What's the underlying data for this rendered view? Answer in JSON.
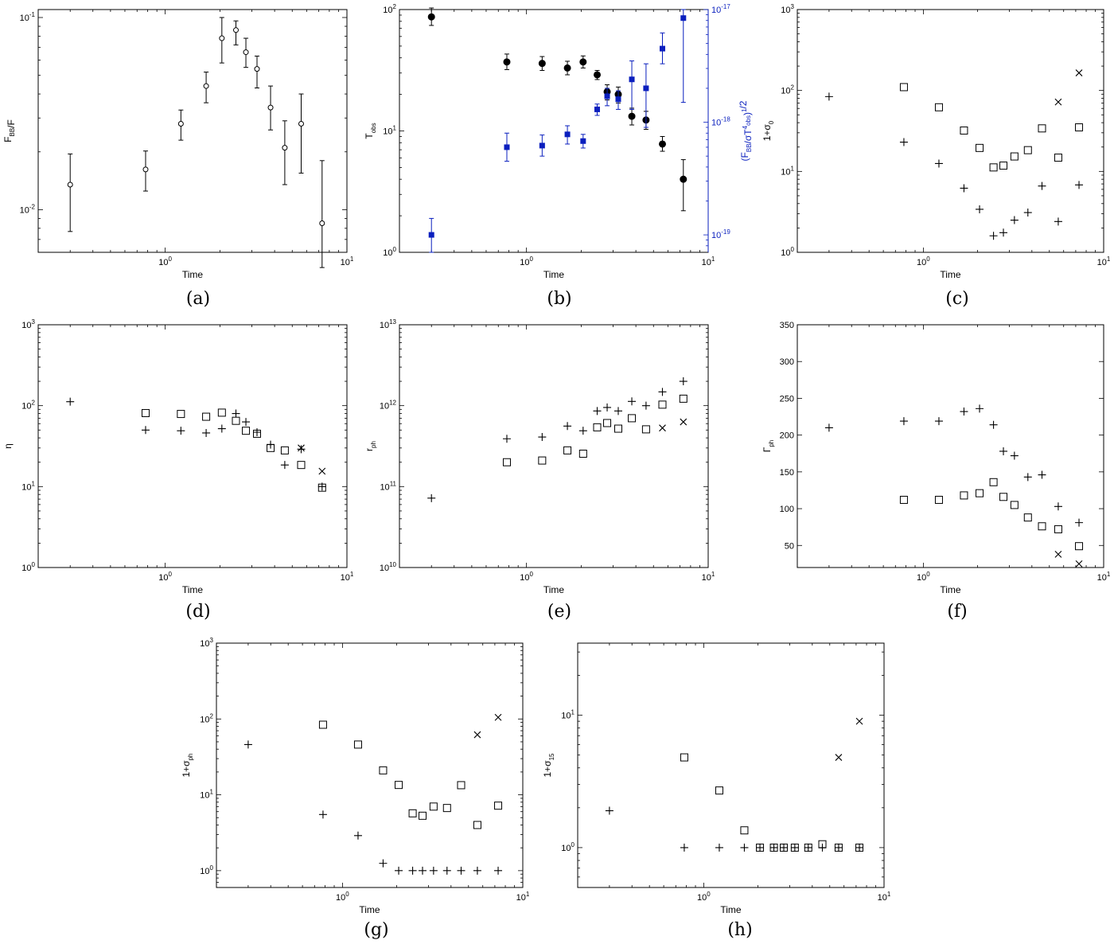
{
  "chart_data": [
    {
      "id": "a",
      "type": "scatter",
      "caption": "(a)",
      "xlabel": "Time",
      "ylabel": "F_BB/F",
      "yscale": "log",
      "xlim": [
        0.2,
        10
      ],
      "ylim": [
        0.006,
        0.11
      ],
      "y_ticks": [
        0.01,
        0.1
      ],
      "y_tick_labels": [
        "10^-2",
        "10^-1"
      ],
      "series": [
        {
          "marker": "circle-open",
          "color": "#000000",
          "x": [
            0.3,
            0.78,
            1.22,
            1.68,
            2.05,
            2.45,
            2.78,
            3.2,
            3.8,
            4.55,
            5.6,
            7.3
          ],
          "y": [
            0.0135,
            0.0162,
            0.028,
            0.044,
            0.078,
            0.086,
            0.066,
            0.054,
            0.034,
            0.021,
            0.028,
            0.0085
          ],
          "y_err_low": [
            0.0058,
            0.0037,
            0.005,
            0.008,
            0.02,
            0.014,
            0.011,
            0.011,
            0.008,
            0.0075,
            0.0125,
            0.0035
          ],
          "y_err_high": [
            0.006,
            0.004,
            0.005,
            0.008,
            0.022,
            0.01,
            0.012,
            0.009,
            0.01,
            0.008,
            0.012,
            0.0095
          ]
        }
      ]
    },
    {
      "id": "b",
      "type": "scatter",
      "caption": "(b)",
      "xlabel": "Time",
      "ylabel": "T_obs",
      "yscale": "log",
      "xlim": [
        0.2,
        10
      ],
      "ylim": [
        1,
        100
      ],
      "y_ticks": [
        1,
        10,
        100
      ],
      "y_tick_labels": [
        "10^0",
        "10^1",
        "10^2"
      ],
      "y2label": "(F_BB/σT^4_obs)^1/2",
      "y2scale": "log",
      "y2lim": [
        7e-20,
        1e-17
      ],
      "y2_ticks": [
        1e-19,
        1e-18,
        1e-17
      ],
      "y2_tick_labels": [
        "10^-19",
        "10^-18",
        "10^-17"
      ],
      "series": [
        {
          "axis": "left",
          "marker": "circle-filled",
          "color": "#000000",
          "x": [
            0.3,
            0.78,
            1.22,
            1.68,
            2.05,
            2.45,
            2.78,
            3.2,
            3.8,
            4.55,
            5.6,
            7.3
          ],
          "y": [
            87,
            37,
            36,
            33,
            37,
            29,
            21,
            20,
            13.2,
            12.3,
            7.8,
            4.0
          ],
          "y_err_low": [
            13,
            5,
            4.5,
            4,
            4,
            2.5,
            3,
            3,
            2,
            2,
            1,
            1.8
          ],
          "y_err_high": [
            16,
            6,
            5,
            4.5,
            4.5,
            2.5,
            3,
            3,
            2.2,
            2.2,
            1.2,
            1.8
          ]
        },
        {
          "axis": "right",
          "marker": "square-filled",
          "color": "#0a1fbe",
          "x": [
            0.3,
            0.78,
            1.22,
            1.68,
            2.05,
            2.45,
            2.78,
            3.2,
            3.8,
            4.55,
            5.6,
            7.3
          ],
          "y": [
            1e-19,
            6e-19,
            6.2e-19,
            7.8e-19,
            6.8e-19,
            1.3e-18,
            1.7e-18,
            1.6e-18,
            2.4e-18,
            2e-18,
            4.5e-18,
            8.4e-18
          ],
          "y_err_low": [
            3e-20,
            1.5e-19,
            1.2e-19,
            1.4e-19,
            9e-20,
            1.5e-19,
            3e-19,
            3e-19,
            1.1e-18,
            1.1e-18,
            1.2e-18,
            6.9e-18
          ],
          "y_err_high": [
            4e-20,
            2e-19,
            1.5e-19,
            1.5e-19,
            1e-19,
            1.5e-19,
            3e-19,
            3e-19,
            1.1e-18,
            1.3e-18,
            1.7e-18,
            1.6e-18
          ]
        }
      ]
    },
    {
      "id": "c",
      "type": "scatter",
      "caption": "(c)",
      "xlabel": "Time",
      "ylabel": "1+σ_0",
      "yscale": "log",
      "xlim": [
        0.2,
        10
      ],
      "ylim": [
        1,
        1000
      ],
      "y_ticks": [
        1,
        10,
        100,
        1000
      ],
      "y_tick_labels": [
        "10^0",
        "10^1",
        "10^2",
        "10^3"
      ],
      "series": [
        {
          "marker": "plus",
          "color": "#000000",
          "x": [
            0.3,
            0.78,
            1.22,
            1.68,
            2.05,
            2.45,
            2.78,
            3.2,
            3.8,
            4.55,
            5.6,
            7.3
          ],
          "y": [
            84,
            23,
            12.5,
            6.2,
            3.4,
            1.6,
            1.75,
            2.5,
            3.1,
            6.6,
            2.4,
            6.8
          ]
        },
        {
          "marker": "square-open",
          "color": "#000000",
          "x": [
            0.78,
            1.22,
            1.68,
            2.05,
            2.45,
            2.78,
            3.2,
            3.8,
            4.55,
            5.6,
            7.3
          ],
          "y": [
            110,
            62,
            32,
            19.5,
            11.2,
            11.8,
            15.3,
            18.3,
            34,
            14.8,
            35
          ]
        },
        {
          "marker": "cross",
          "color": "#000000",
          "x": [
            5.6,
            7.3
          ],
          "y": [
            72,
            165
          ]
        }
      ]
    },
    {
      "id": "d",
      "type": "scatter",
      "caption": "(d)",
      "xlabel": "Time",
      "ylabel": "η",
      "yscale": "log",
      "xlim": [
        0.2,
        10
      ],
      "ylim": [
        1,
        1000
      ],
      "y_ticks": [
        1,
        10,
        100,
        1000
      ],
      "y_tick_labels": [
        "10^0",
        "10^1",
        "10^2",
        "10^3"
      ],
      "series": [
        {
          "marker": "plus",
          "color": "#000000",
          "x": [
            0.3,
            0.78,
            1.22,
            1.68,
            2.05,
            2.45,
            2.78,
            3.2,
            3.8,
            4.55,
            5.6,
            7.3
          ],
          "y": [
            112,
            50,
            49,
            46,
            52,
            80,
            63,
            47,
            33,
            18.5,
            29,
            10
          ]
        },
        {
          "marker": "square-open",
          "color": "#000000",
          "x": [
            0.78,
            1.22,
            1.68,
            2.05,
            2.45,
            2.78,
            3.2,
            3.8,
            4.55,
            5.6,
            7.3
          ],
          "y": [
            81,
            79,
            73,
            82,
            65,
            49,
            45,
            30,
            28,
            18.5,
            9.7
          ]
        },
        {
          "marker": "cross",
          "color": "#000000",
          "x": [
            5.6,
            7.3
          ],
          "y": [
            30,
            15.5
          ]
        }
      ]
    },
    {
      "id": "e",
      "type": "scatter",
      "caption": "(e)",
      "xlabel": "Time",
      "ylabel": "r_ph",
      "yscale": "log",
      "xlim": [
        0.2,
        10
      ],
      "ylim": [
        10000000000,
        10000000000000
      ],
      "y_ticks": [
        10000000000,
        100000000000,
        1000000000000,
        10000000000000
      ],
      "y_tick_labels": [
        "10^10",
        "10^11",
        "10^12",
        "10^13"
      ],
      "series": [
        {
          "marker": "plus",
          "color": "#000000",
          "x": [
            0.3,
            0.78,
            1.22,
            1.68,
            2.05,
            2.45,
            2.78,
            3.2,
            3.8,
            4.55,
            5.6,
            7.3
          ],
          "y": [
            72000000000,
            390000000000,
            410000000000,
            560000000000,
            490000000000,
            860000000000,
            950000000000,
            860000000000,
            1130000000000,
            1000000000000,
            1480000000000,
            2000000000000
          ]
        },
        {
          "marker": "square-open",
          "color": "#000000",
          "x": [
            0.78,
            1.22,
            1.68,
            2.05,
            2.45,
            2.78,
            3.2,
            3.8,
            4.55,
            5.6,
            7.3
          ],
          "y": [
            200000000000,
            210000000000,
            280000000000,
            255000000000,
            540000000000,
            610000000000,
            520000000000,
            700000000000,
            510000000000,
            1030000000000,
            1220000000000
          ]
        },
        {
          "marker": "cross",
          "color": "#000000",
          "x": [
            5.6,
            7.3
          ],
          "y": [
            530000000000,
            630000000000
          ]
        }
      ]
    },
    {
      "id": "f",
      "type": "scatter",
      "caption": "(f)",
      "xlabel": "Time",
      "ylabel": "Γ_ph",
      "yscale": "linear",
      "xlim": [
        0.2,
        10
      ],
      "ylim": [
        20,
        350
      ],
      "y_ticks": [
        50,
        100,
        150,
        200,
        250,
        300,
        350
      ],
      "y_tick_labels": [
        "50",
        "100",
        "150",
        "200",
        "250",
        "300",
        "350"
      ],
      "series": [
        {
          "marker": "plus",
          "color": "#000000",
          "x": [
            0.3,
            0.78,
            1.22,
            1.68,
            2.05,
            2.45,
            2.78,
            3.2,
            3.8,
            4.55,
            5.6,
            7.3
          ],
          "y": [
            210,
            219,
            219,
            232,
            236,
            214,
            178,
            172,
            143,
            146,
            103,
            81
          ]
        },
        {
          "marker": "square-open",
          "color": "#000000",
          "x": [
            0.78,
            1.22,
            1.68,
            2.05,
            2.45,
            2.78,
            3.2,
            3.8,
            4.55,
            5.6,
            7.3
          ],
          "y": [
            112,
            112,
            118,
            121,
            136,
            116,
            105,
            88,
            76,
            72,
            49
          ]
        },
        {
          "marker": "cross",
          "color": "#000000",
          "x": [
            5.6,
            7.3
          ],
          "y": [
            38,
            25
          ]
        }
      ]
    },
    {
      "id": "g",
      "type": "scatter",
      "caption": "(g)",
      "xlabel": "Time",
      "ylabel": "1+σ_ph",
      "yscale": "log",
      "xlim": [
        0.2,
        10
      ],
      "ylim": [
        0.6,
        1000
      ],
      "y_ticks": [
        1,
        10,
        100,
        1000
      ],
      "y_tick_labels": [
        "10^0",
        "10^1",
        "10^2",
        "10^3"
      ],
      "series": [
        {
          "marker": "plus",
          "color": "#000000",
          "x": [
            0.3,
            0.78,
            1.22,
            1.68,
            2.05,
            2.45,
            2.78,
            3.2,
            3.8,
            4.55,
            5.6,
            7.3
          ],
          "y": [
            46,
            5.5,
            2.9,
            1.25,
            1,
            1,
            1,
            1,
            1,
            1,
            1,
            1
          ]
        },
        {
          "marker": "square-open",
          "color": "#000000",
          "x": [
            0.78,
            1.22,
            1.68,
            2.05,
            2.45,
            2.78,
            3.2,
            3.8,
            4.55,
            5.6,
            7.3
          ],
          "y": [
            84,
            46,
            21,
            13.5,
            5.7,
            5.3,
            7,
            6.7,
            13.4,
            4,
            7.2
          ]
        },
        {
          "marker": "cross",
          "color": "#000000",
          "x": [
            5.6,
            7.3
          ],
          "y": [
            62,
            105
          ]
        }
      ]
    },
    {
      "id": "h",
      "type": "scatter",
      "caption": "(h)",
      "xlabel": "Time",
      "ylabel": "1+σ_15",
      "yscale": "log",
      "xlim": [
        0.2,
        10
      ],
      "ylim": [
        0.5,
        35
      ],
      "y_ticks": [
        1,
        10
      ],
      "y_tick_labels": [
        "10^0",
        "10^1"
      ],
      "series": [
        {
          "marker": "plus",
          "color": "#000000",
          "x": [
            0.3,
            0.78,
            1.22,
            1.68,
            2.05,
            2.45,
            2.78,
            3.2,
            3.8,
            4.55,
            5.6,
            7.3
          ],
          "y": [
            1.9,
            1,
            1,
            1,
            1,
            1,
            1,
            1,
            1,
            1,
            1,
            1
          ]
        },
        {
          "marker": "square-open",
          "color": "#000000",
          "x": [
            0.78,
            1.22,
            1.68,
            2.05,
            2.45,
            2.78,
            3.2,
            3.8,
            4.55,
            5.6,
            7.3
          ],
          "y": [
            4.8,
            2.7,
            1.35,
            1,
            1,
            1,
            1,
            1,
            1.06,
            1,
            1
          ]
        },
        {
          "marker": "cross",
          "color": "#000000",
          "x": [
            5.6,
            7.3
          ],
          "y": [
            4.8,
            9
          ]
        }
      ]
    }
  ],
  "shared_x_ticks": [
    1,
    10
  ],
  "shared_x_tick_labels": [
    "10^0",
    "10^1"
  ]
}
